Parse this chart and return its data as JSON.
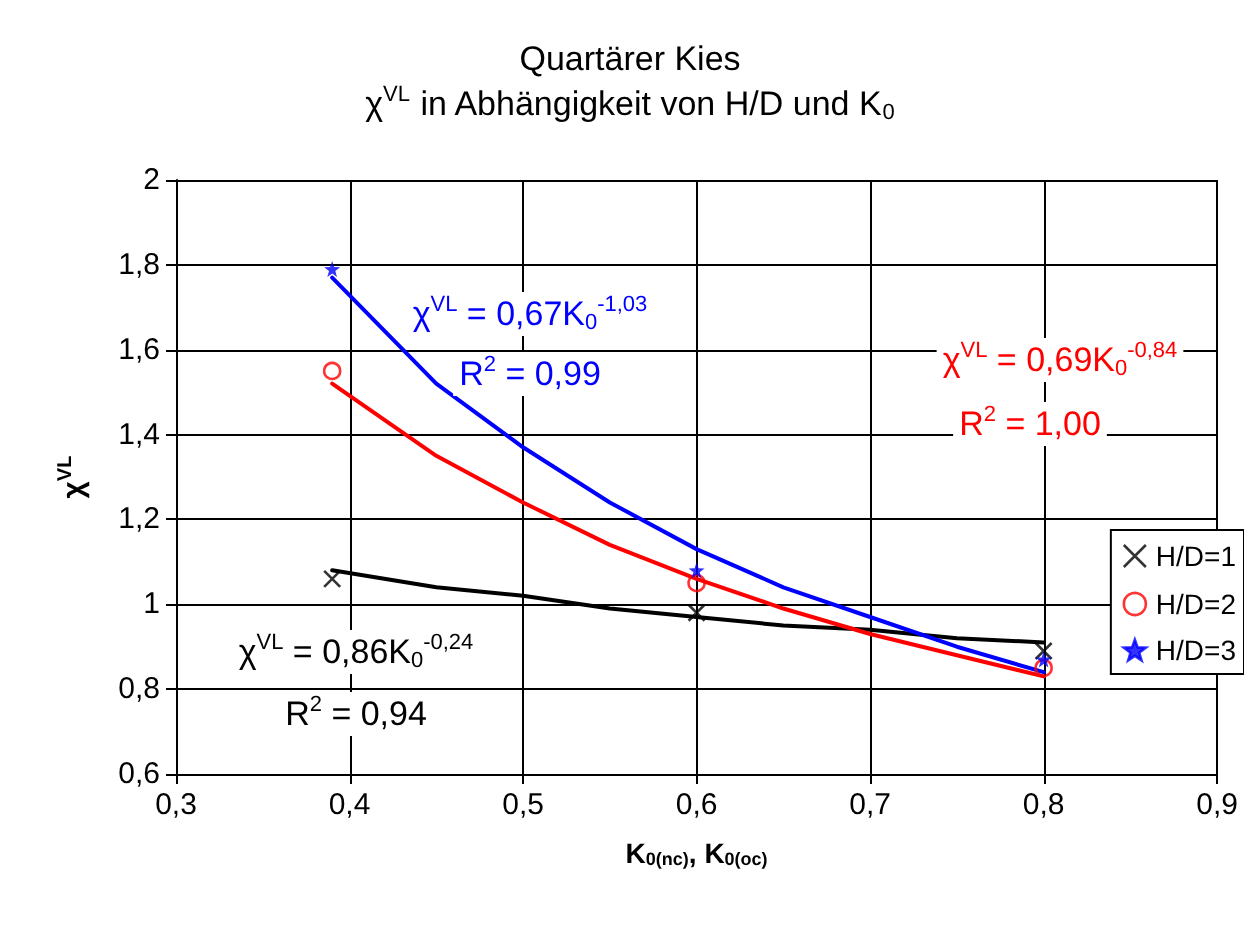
{
  "chart_data": {
    "type": "scatter",
    "title": "Quartärer Kies",
    "subtitle": "χ$^{VL}$ in Abhängigkeit von H/D und K$_{0}$",
    "xlabel": "K$_{0(nc)}$, K$_{0(oc)}$",
    "ylabel": "χ$^{VL}$",
    "xlim": [
      0.3,
      0.9
    ],
    "ylim": [
      0.6,
      2
    ],
    "xticks": [
      {
        "value": 0.3,
        "label": "0,3"
      },
      {
        "value": 0.4,
        "label": "0,4"
      },
      {
        "value": 0.5,
        "label": "0,5"
      },
      {
        "value": 0.6,
        "label": "0,6"
      },
      {
        "value": 0.7,
        "label": "0,7"
      },
      {
        "value": 0.8,
        "label": "0,8"
      },
      {
        "value": 0.9,
        "label": "0,9"
      }
    ],
    "yticks": [
      {
        "value": 0.6,
        "label": "0,6"
      },
      {
        "value": 0.8,
        "label": "0,8"
      },
      {
        "value": 1,
        "label": "1"
      },
      {
        "value": 1.2,
        "label": "1,2"
      },
      {
        "value": 1.4,
        "label": "1,4"
      },
      {
        "value": 1.6,
        "label": "1,6"
      },
      {
        "value": 1.8,
        "label": "1,8"
      },
      {
        "value": 2,
        "label": "2"
      }
    ],
    "grid": true,
    "legend": "right",
    "series": [
      {
        "name": "H/D=1",
        "marker": "cross",
        "color": "#000000",
        "x": [
          0.39,
          0.6,
          0.8
        ],
        "values": [
          1.06,
          0.98,
          0.89
        ]
      },
      {
        "name": "H/D=2",
        "marker": "circle",
        "color": "#ff0000",
        "x": [
          0.39,
          0.6,
          0.8
        ],
        "values": [
          1.55,
          1.05,
          0.85
        ]
      },
      {
        "name": "H/D=3",
        "marker": "star",
        "color": "#0000ff",
        "x": [
          0.39,
          0.6,
          0.8
        ],
        "values": [
          1.79,
          1.08,
          0.87
        ]
      },
      {
        "type": "line",
        "marker": "none",
        "color": "#000000",
        "x": [
          0.39,
          0.45,
          0.5,
          0.55,
          0.6,
          0.65,
          0.7,
          0.75,
          0.8
        ],
        "values": [
          1.08,
          1.04,
          1.02,
          0.99,
          0.97,
          0.95,
          0.94,
          0.92,
          0.91
        ]
      },
      {
        "type": "line",
        "marker": "none",
        "color": "#ff0000",
        "x": [
          0.39,
          0.45,
          0.5,
          0.55,
          0.6,
          0.65,
          0.7,
          0.75,
          0.8
        ],
        "values": [
          1.52,
          1.35,
          1.24,
          1.14,
          1.06,
          0.99,
          0.93,
          0.88,
          0.83
        ]
      },
      {
        "type": "line",
        "marker": "none",
        "color": "#0000ff",
        "x": [
          0.39,
          0.45,
          0.5,
          0.55,
          0.6,
          0.65,
          0.7,
          0.75,
          0.8
        ],
        "values": [
          1.77,
          1.52,
          1.37,
          1.24,
          1.13,
          1.04,
          0.97,
          0.9,
          0.84
        ]
      }
    ],
    "annotations": [
      "χ$^{VL}$ = 0,67K$_{0}$$^{-1,03}$",
      "R$^{2}$ = 0,99",
      "χ$^{VL}$ = 0,69K$_{0}$$^{-0,84}$",
      "R$^{2}$ = 1,00",
      "χ$^{VL}$ = 0,86K$_{0}$$^{-0,24}$",
      "R$^{2}$ = 0,94"
    ]
  }
}
